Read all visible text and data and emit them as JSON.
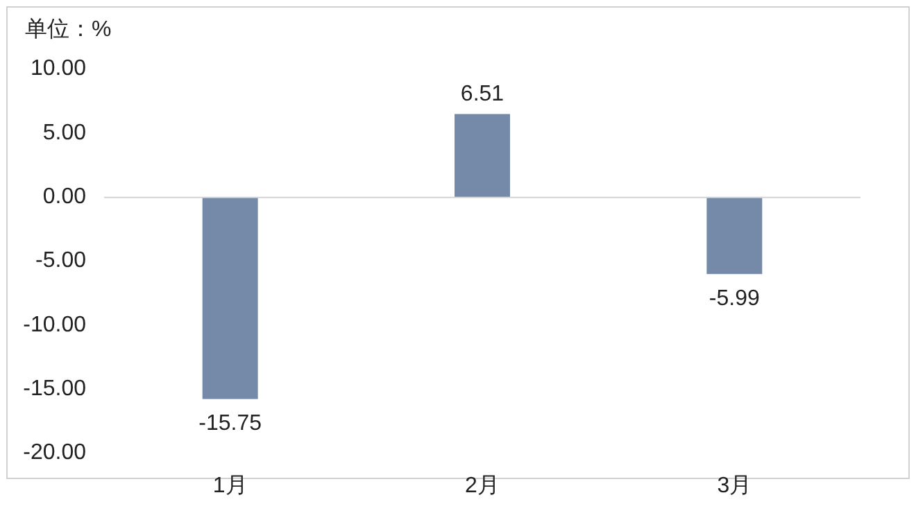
{
  "chart_data": {
    "type": "bar",
    "ylabel": "单位：%",
    "categories": [
      "1月",
      "2月",
      "3月"
    ],
    "values": [
      -15.75,
      6.51,
      -5.99
    ],
    "color": "#7589a8",
    "data_labels": true,
    "ylim": [
      -20,
      10
    ],
    "yticks": [
      {
        "value": 10,
        "label": "10.00"
      },
      {
        "value": 5,
        "label": "5.00"
      },
      {
        "value": 0,
        "label": "0.00"
      },
      {
        "value": -5,
        "label": "-5.00"
      },
      {
        "value": -10,
        "label": "-10.00"
      },
      {
        "value": -15,
        "label": "-15.00"
      },
      {
        "value": -20,
        "label": "-20.00"
      }
    ]
  }
}
